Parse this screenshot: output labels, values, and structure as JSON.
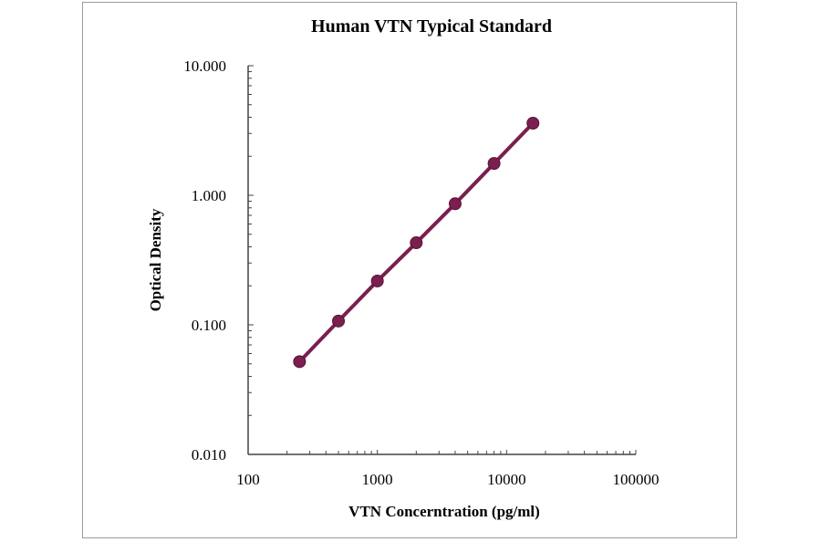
{
  "chart_data": {
    "type": "line",
    "title": "Human VTN Typical Standard",
    "xlabel": "VTN Concerntration (pg/ml)",
    "ylabel": "Optical Density",
    "x_scale": "log",
    "y_scale": "log",
    "xlim": [
      100,
      100000
    ],
    "ylim": [
      0.01,
      10
    ],
    "x_ticks": [
      "100",
      "1000",
      "10000",
      "100000"
    ],
    "y_ticks": [
      "0.010",
      "0.100",
      "1.000",
      "10.000"
    ],
    "grid": false,
    "legend": "none",
    "series": [
      {
        "color": "#7a1f4e",
        "marker": "circle",
        "x": [
          250,
          500,
          1000,
          2000,
          4000,
          8000,
          16000
        ],
        "y": [
          0.052,
          0.107,
          0.218,
          0.43,
          0.86,
          1.76,
          3.6
        ]
      }
    ]
  }
}
